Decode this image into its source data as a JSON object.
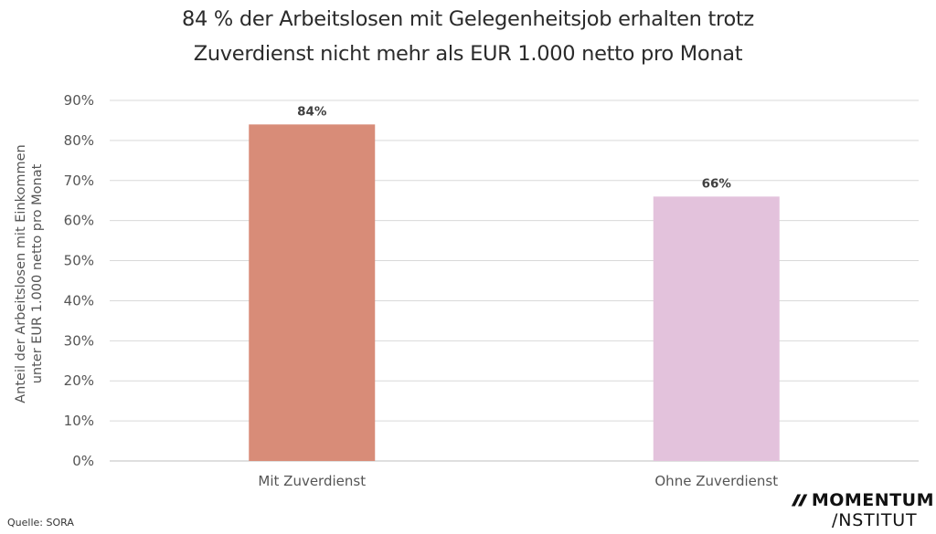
{
  "chart_data": {
    "type": "bar",
    "title": [
      "84 % der Arbeitslosen mit Gelegenheitsjob erhalten trotz",
      "Zuverdienst nicht mehr als EUR 1.000 netto pro Monat"
    ],
    "categories": [
      "Mit Zuverdienst",
      "Ohne Zuverdienst"
    ],
    "values": [
      84,
      66
    ],
    "data_labels": [
      "84%",
      "66%"
    ],
    "colors": [
      "#d88c78",
      "#e3c2dc"
    ],
    "ylabel": [
      "Anteil der Arbeitslosen mit Einkommen",
      "unter EUR 1.000 netto pro Monat"
    ],
    "yticks": [
      0,
      10,
      20,
      30,
      40,
      50,
      60,
      70,
      80,
      90
    ],
    "ytick_labels": [
      "0%",
      "10%",
      "20%",
      "30%",
      "40%",
      "50%",
      "60%",
      "70%",
      "80%",
      "90%"
    ],
    "ylim": [
      0,
      90
    ],
    "grid": true
  },
  "source": "Quelle: SORA",
  "logo": {
    "mark": "//",
    "name": "MOMENTUM",
    "sub": "/NSTITUT"
  }
}
